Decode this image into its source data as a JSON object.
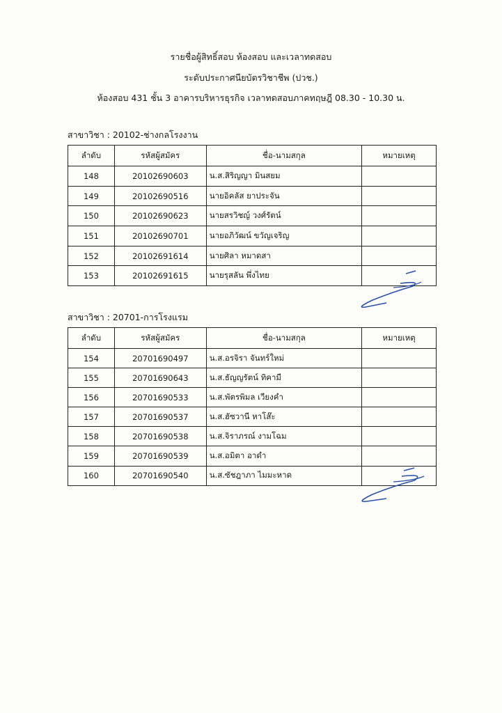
{
  "header": {
    "line1": "รายชื่อผู้สิทธิ์สอบ  ห้องสอบ  และเวลาทดสอบ",
    "line2": "ระดับประกาศนียบัตรวิชาชีพ (ปวช.)",
    "line3": "ห้องสอบ  431  ชั้น  3  อาคารบริหารธุรกิจ  เวลาทดสอบภาคทฤษฎี  08.30 - 10.30  น."
  },
  "columns": [
    "ลำดับ",
    "รหัสผู้สมัคร",
    "ชื่อ-นามสกุล",
    "หมายเหตุ"
  ],
  "sections": [
    {
      "label": "สาขาวิชา : 20102-ช่างกลโรงงาน",
      "rows": [
        {
          "no": "148",
          "id": "20102690603",
          "name": "น.ส.สิริญญา  มินสยม",
          "note": ""
        },
        {
          "no": "149",
          "id": "20102690516",
          "name": "นายอิคลัส  ยาประจัน",
          "note": ""
        },
        {
          "no": "150",
          "id": "20102690623",
          "name": "นายสรวิชญ์  วงศ์รัตน์",
          "note": ""
        },
        {
          "no": "151",
          "id": "20102690701",
          "name": "นายอภิวัฒน์  ขวัญเจริญ",
          "note": ""
        },
        {
          "no": "152",
          "id": "20102691614",
          "name": "นายศิลา  หมาดสา",
          "note": ""
        },
        {
          "no": "153",
          "id": "20102691615",
          "name": "นายรุสลัน  พึ่งไทย",
          "note": ""
        }
      ]
    },
    {
      "label": "สาขาวิชา : 20701-การโรงแรม",
      "rows": [
        {
          "no": "154",
          "id": "20701690497",
          "name": "น.ส.อรจิรา  จันทร์ใหม่",
          "note": ""
        },
        {
          "no": "155",
          "id": "20701690643",
          "name": "น.ส.ธัญญรัตน์  ทิคามี",
          "note": ""
        },
        {
          "no": "156",
          "id": "20701690533",
          "name": "น.ส.พัตรพิมล  เวียงคำ",
          "note": ""
        },
        {
          "no": "157",
          "id": "20701690537",
          "name": "น.ส.ฮัซวานี  หาโส๊ะ",
          "note": ""
        },
        {
          "no": "158",
          "id": "20701690538",
          "name": "น.ส.จิราภรณ์  งามโฉม",
          "note": ""
        },
        {
          "no": "159",
          "id": "20701690539",
          "name": "น.ส.อมิตา  อาดำ",
          "note": ""
        },
        {
          "no": "160",
          "id": "20701690540",
          "name": "น.ส.ซัชฎาภา  ไมมะหาด",
          "note": ""
        }
      ]
    }
  ],
  "colors": {
    "ink": "#1a1a1a",
    "signature": "#2a4fa8"
  }
}
